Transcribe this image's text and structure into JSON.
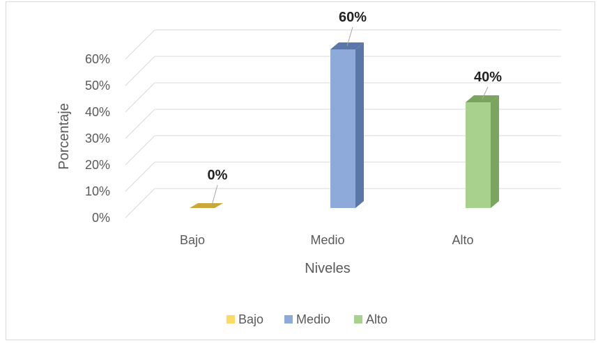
{
  "chart_data": {
    "type": "bar",
    "categories": [
      "Bajo",
      "Medio",
      "Alto"
    ],
    "values": [
      0,
      60,
      40
    ],
    "data_labels": [
      "0%",
      "60%",
      "40%"
    ],
    "colors": [
      "#ffd966",
      "#8eaadb",
      "#a9d18e"
    ],
    "side_colors": [
      "#c9a838",
      "#5b76a8",
      "#7ba55e"
    ],
    "xlabel": "Niveles",
    "ylabel": "Porcentaje",
    "ylim": [
      0,
      60
    ],
    "yticks": [
      "0%",
      "10%",
      "20%",
      "30%",
      "40%",
      "50%",
      "60%"
    ],
    "grid": true,
    "legend_position": "bottom",
    "legend": [
      "Bajo",
      "Medio",
      "Alto"
    ]
  }
}
